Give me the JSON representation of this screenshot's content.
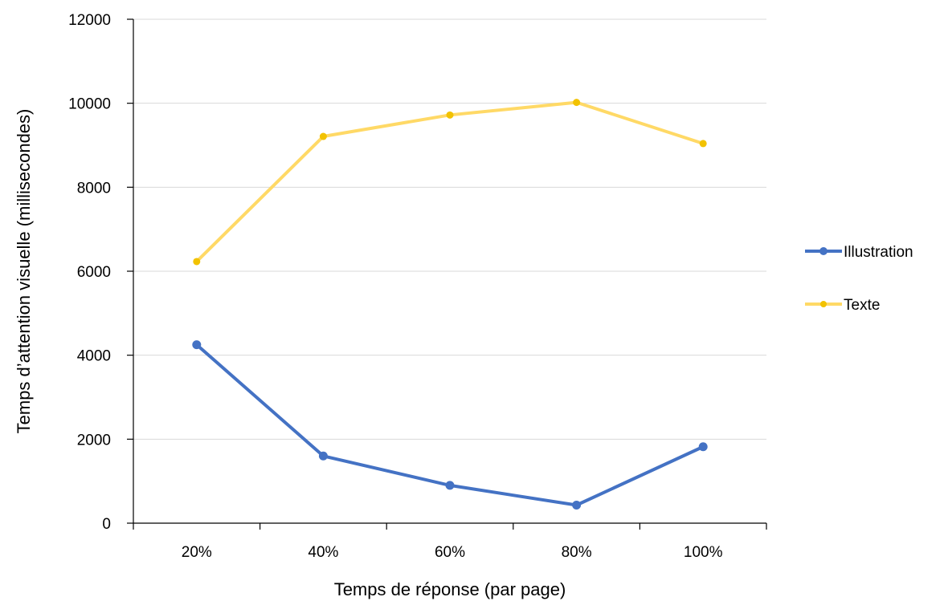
{
  "chart_data": {
    "type": "line",
    "title": "",
    "xlabel": "Temps de réponse (par page)",
    "ylabel": "Temps d’attention visuelle (millisecondes)",
    "categories": [
      "20%",
      "40%",
      "60%",
      "80%",
      "100%"
    ],
    "ylim": [
      0,
      12000
    ],
    "yticks": [
      0,
      2000,
      4000,
      6000,
      8000,
      10000,
      12000
    ],
    "grid": true,
    "legend_position": "right",
    "series": [
      {
        "name": "Illustration",
        "color": "#4472C4",
        "values": [
          4250,
          1600,
          900,
          430,
          1820
        ]
      },
      {
        "name": "Texte",
        "color": "#FFD966",
        "marker_color": "#F2C200",
        "values": [
          6230,
          9210,
          9720,
          10020,
          9040
        ]
      }
    ]
  }
}
